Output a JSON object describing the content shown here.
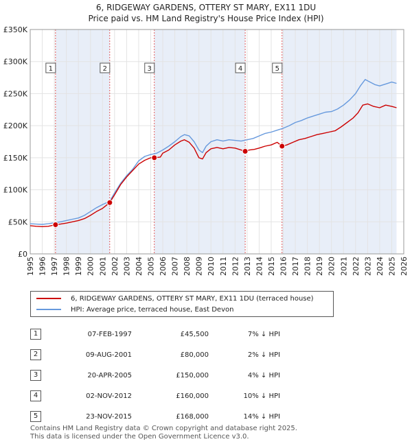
{
  "title_line1": "6, RIDGEWAY GARDENS, OTTERY ST MARY, EX11 1DU",
  "title_line2": "Price paid vs. HM Land Registry's House Price Index (HPI)",
  "colors": {
    "property": "#cc0000",
    "hpi": "#6699dd",
    "shade": "#e8eef8",
    "marker": "#cc0000"
  },
  "legend": {
    "property_label": "6, RIDGEWAY GARDENS, OTTERY ST MARY, EX11 1DU (terraced house)",
    "hpi_label": "HPI: Average price, terraced house, East Devon"
  },
  "transactions": [
    {
      "num": "1",
      "date": "07-FEB-1997",
      "price": "£45,500",
      "hpi": "7% ↓ HPI"
    },
    {
      "num": "2",
      "date": "09-AUG-2001",
      "price": "£80,000",
      "hpi": "2% ↓ HPI"
    },
    {
      "num": "3",
      "date": "20-APR-2005",
      "price": "£150,000",
      "hpi": "4% ↓ HPI"
    },
    {
      "num": "4",
      "date": "02-NOV-2012",
      "price": "£160,000",
      "hpi": "10% ↓ HPI"
    },
    {
      "num": "5",
      "date": "23-NOV-2015",
      "price": "£168,000",
      "hpi": "14% ↓ HPI"
    }
  ],
  "footer_line1": "Contains HM Land Registry data © Crown copyright and database right 2025.",
  "footer_line2": "This data is licensed under the Open Government Licence v3.0.",
  "chart_data": {
    "type": "line",
    "title": "6, RIDGEWAY GARDENS, OTTERY ST MARY, EX11 1DU",
    "subtitle": "Price paid vs. HM Land Registry's House Price Index (HPI)",
    "xlim": [
      1995,
      2026
    ],
    "ylim": [
      0,
      350000
    ],
    "x_ticks": [
      1995,
      1996,
      1997,
      1998,
      1999,
      2000,
      2001,
      2002,
      2003,
      2004,
      2005,
      2006,
      2007,
      2008,
      2009,
      2010,
      2011,
      2012,
      2013,
      2014,
      2015,
      2016,
      2017,
      2018,
      2019,
      2020,
      2021,
      2022,
      2023,
      2024,
      2025,
      2026
    ],
    "y_ticks": [
      {
        "value": 0,
        "label": "£0"
      },
      {
        "value": 50000,
        "label": "£50K"
      },
      {
        "value": 100000,
        "label": "£100K"
      },
      {
        "value": 150000,
        "label": "£150K"
      },
      {
        "value": 200000,
        "label": "£200K"
      },
      {
        "value": 250000,
        "label": "£250K"
      },
      {
        "value": 300000,
        "label": "£300K"
      },
      {
        "value": 350000,
        "label": "£350K"
      }
    ],
    "shaded_ranges": [
      [
        1997.1,
        2001.6
      ],
      [
        2005.3,
        2012.84
      ],
      [
        2015.9,
        2025.4
      ]
    ],
    "sales": [
      {
        "label": "1",
        "x": 1997.1,
        "y": 45500
      },
      {
        "label": "2",
        "x": 2001.6,
        "y": 80000
      },
      {
        "label": "3",
        "x": 2005.3,
        "y": 150000
      },
      {
        "label": "4",
        "x": 2012.84,
        "y": 160000
      },
      {
        "label": "5",
        "x": 2015.9,
        "y": 168000
      }
    ],
    "series": [
      {
        "name": "6, RIDGEWAY GARDENS, OTTERY ST MARY, EX11 1DU (terraced house)",
        "color": "#cc0000",
        "points": [
          [
            1995,
            44000
          ],
          [
            1995.5,
            43000
          ],
          [
            1996,
            42500
          ],
          [
            1996.5,
            43000
          ],
          [
            1997.1,
            45500
          ],
          [
            1997.5,
            46500
          ],
          [
            1998,
            48000
          ],
          [
            1998.5,
            50000
          ],
          [
            1999,
            52000
          ],
          [
            1999.5,
            55000
          ],
          [
            2000,
            60000
          ],
          [
            2000.5,
            66000
          ],
          [
            2001,
            71000
          ],
          [
            2001.6,
            80000
          ],
          [
            2002,
            92000
          ],
          [
            2002.5,
            108000
          ],
          [
            2003,
            120000
          ],
          [
            2003.5,
            130000
          ],
          [
            2004,
            140000
          ],
          [
            2004.5,
            146000
          ],
          [
            2005,
            150000
          ],
          [
            2005.3,
            150000
          ],
          [
            2005.8,
            151000
          ],
          [
            2006,
            157000
          ],
          [
            2006.5,
            162000
          ],
          [
            2007,
            170000
          ],
          [
            2007.5,
            176000
          ],
          [
            2007.8,
            178000
          ],
          [
            2008.2,
            174000
          ],
          [
            2008.6,
            165000
          ],
          [
            2009,
            150000
          ],
          [
            2009.3,
            148000
          ],
          [
            2009.6,
            158000
          ],
          [
            2010,
            164000
          ],
          [
            2010.5,
            166000
          ],
          [
            2011,
            164000
          ],
          [
            2011.5,
            166000
          ],
          [
            2012,
            165000
          ],
          [
            2012.84,
            160000
          ],
          [
            2013.2,
            162000
          ],
          [
            2013.6,
            163000
          ],
          [
            2014,
            165000
          ],
          [
            2014.5,
            168000
          ],
          [
            2015,
            170000
          ],
          [
            2015.5,
            174000
          ],
          [
            2015.9,
            168000
          ],
          [
            2016.3,
            170000
          ],
          [
            2016.8,
            174000
          ],
          [
            2017.3,
            178000
          ],
          [
            2017.8,
            180000
          ],
          [
            2018.3,
            183000
          ],
          [
            2018.8,
            186000
          ],
          [
            2019.3,
            188000
          ],
          [
            2019.8,
            190000
          ],
          [
            2020.3,
            192000
          ],
          [
            2020.8,
            198000
          ],
          [
            2021.3,
            205000
          ],
          [
            2021.8,
            212000
          ],
          [
            2022.2,
            220000
          ],
          [
            2022.6,
            232000
          ],
          [
            2023,
            234000
          ],
          [
            2023.5,
            230000
          ],
          [
            2024,
            228000
          ],
          [
            2024.5,
            232000
          ],
          [
            2025,
            230000
          ],
          [
            2025.4,
            228000
          ]
        ]
      },
      {
        "name": "HPI: Average price, terraced house, East Devon",
        "color": "#6699dd",
        "points": [
          [
            1995,
            47000
          ],
          [
            1995.5,
            46500
          ],
          [
            1996,
            46000
          ],
          [
            1996.5,
            47000
          ],
          [
            1997,
            48500
          ],
          [
            1997.5,
            50000
          ],
          [
            1998,
            52000
          ],
          [
            1998.5,
            54000
          ],
          [
            1999,
            56000
          ],
          [
            1999.5,
            60000
          ],
          [
            2000,
            66000
          ],
          [
            2000.5,
            72000
          ],
          [
            2001,
            77000
          ],
          [
            2001.6,
            82000
          ],
          [
            2002,
            95000
          ],
          [
            2002.5,
            110000
          ],
          [
            2003,
            122000
          ],
          [
            2003.5,
            132000
          ],
          [
            2004,
            145000
          ],
          [
            2004.5,
            152000
          ],
          [
            2005,
            155000
          ],
          [
            2005.5,
            157000
          ],
          [
            2006,
            162000
          ],
          [
            2006.5,
            168000
          ],
          [
            2007,
            175000
          ],
          [
            2007.5,
            183000
          ],
          [
            2007.8,
            186000
          ],
          [
            2008.2,
            184000
          ],
          [
            2008.6,
            175000
          ],
          [
            2009,
            162000
          ],
          [
            2009.3,
            158000
          ],
          [
            2009.6,
            168000
          ],
          [
            2010,
            175000
          ],
          [
            2010.5,
            178000
          ],
          [
            2011,
            176000
          ],
          [
            2011.5,
            178000
          ],
          [
            2012,
            177000
          ],
          [
            2012.5,
            176000
          ],
          [
            2013,
            178000
          ],
          [
            2013.5,
            180000
          ],
          [
            2014,
            184000
          ],
          [
            2014.5,
            188000
          ],
          [
            2015,
            190000
          ],
          [
            2015.5,
            193000
          ],
          [
            2016,
            196000
          ],
          [
            2016.5,
            200000
          ],
          [
            2017,
            205000
          ],
          [
            2017.5,
            208000
          ],
          [
            2018,
            212000
          ],
          [
            2018.5,
            215000
          ],
          [
            2019,
            218000
          ],
          [
            2019.5,
            221000
          ],
          [
            2020,
            222000
          ],
          [
            2020.5,
            226000
          ],
          [
            2021,
            232000
          ],
          [
            2021.5,
            240000
          ],
          [
            2022,
            250000
          ],
          [
            2022.4,
            262000
          ],
          [
            2022.8,
            272000
          ],
          [
            2023.2,
            268000
          ],
          [
            2023.6,
            264000
          ],
          [
            2024,
            262000
          ],
          [
            2024.5,
            265000
          ],
          [
            2025,
            268000
          ],
          [
            2025.4,
            266000
          ]
        ]
      }
    ]
  }
}
